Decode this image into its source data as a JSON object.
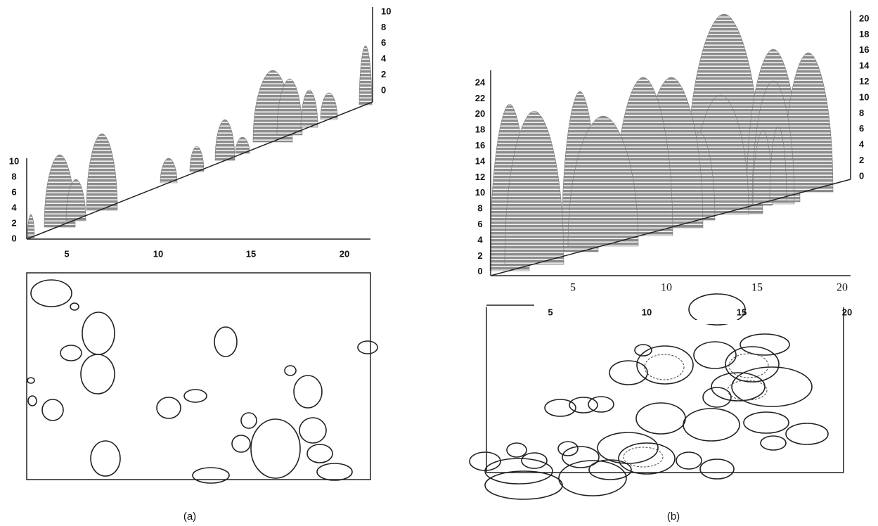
{
  "panels": [
    {
      "caption": "(a)",
      "stand_view": {
        "left_axis_labels": [
          "10",
          "8",
          "6",
          "4",
          "2",
          "0"
        ],
        "right_axis_labels": [
          "10",
          "8",
          "6",
          "4",
          "2",
          "0"
        ],
        "x_axis_labels": [
          "5",
          "10",
          "15",
          "20"
        ]
      }
    },
    {
      "caption": "(b)",
      "stand_view": {
        "left_axis_labels": [
          "24",
          "22",
          "20",
          "18",
          "16",
          "14",
          "12",
          "10",
          "8",
          "6",
          "4",
          "2",
          "0"
        ],
        "right_axis_labels": [
          "20",
          "18",
          "16",
          "14",
          "12",
          "10",
          "8",
          "6",
          "4",
          "2",
          "0"
        ],
        "x_axis_labels": [
          "5",
          "10",
          "15",
          "20"
        ]
      },
      "crown_map": {
        "x_axis_labels": [
          "5",
          "10",
          "15",
          "20"
        ]
      }
    }
  ]
}
